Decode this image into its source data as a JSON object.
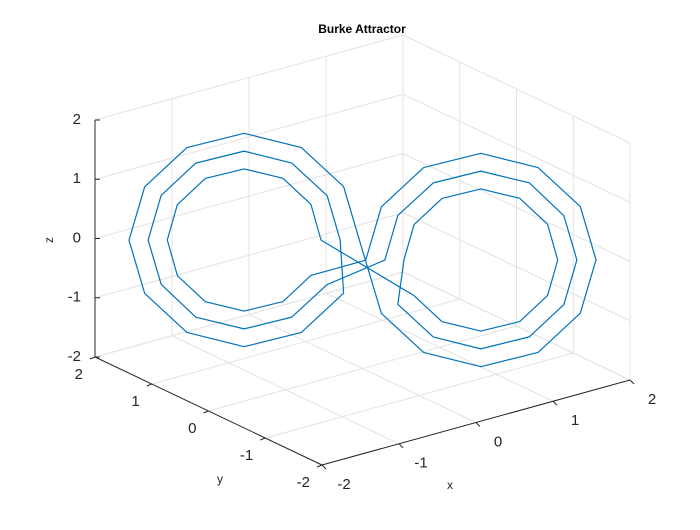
{
  "chart_data": {
    "type": "line3d",
    "title": "Burke Attractor",
    "xlabel": "x",
    "ylabel": "y",
    "zlabel": "z",
    "color": "#0072bd",
    "grid": true,
    "xlim": [
      -2,
      2
    ],
    "ylim": [
      -2,
      2
    ],
    "zlim": [
      -2,
      2
    ],
    "xticks": [
      -2,
      -1,
      0,
      1,
      2
    ],
    "yticks": [
      -2,
      -1,
      0,
      1,
      2
    ],
    "zticks": [
      -2,
      -1,
      0,
      1,
      2
    ],
    "x": [
      0.15,
      0.02,
      -0.33,
      -0.8,
      -1.27,
      -1.62,
      -1.75,
      -1.62,
      -1.27,
      -0.8,
      -0.33,
      0.02,
      -0.01,
      -0.12,
      -0.41,
      -0.8,
      -1.2,
      -1.48,
      -1.59,
      -1.48,
      -1.2,
      -0.8,
      -0.41,
      -0.12,
      0.01,
      0.12,
      0.41,
      0.8,
      1.2,
      1.48,
      1.59,
      1.48,
      1.2,
      0.8,
      0.41,
      0.12,
      0.17,
      0.25,
      0.48,
      0.8,
      1.12,
      1.35,
      1.43,
      1.35,
      1.12,
      0.8,
      0.48,
      0.25,
      -0.17,
      -0.25,
      -0.48,
      -0.8,
      -1.12,
      -1.35,
      -1.43,
      -1.35,
      -1.12,
      -0.8,
      -0.48,
      -0.25,
      -0.15,
      -0.02,
      0.33,
      0.8,
      1.27,
      1.62,
      1.75,
      1.62,
      1.27,
      0.8,
      0.33,
      -0.02,
      0.15
    ],
    "y": [
      0.26,
      0.36,
      0.63,
      1.0,
      1.37,
      1.64,
      1.74,
      1.64,
      1.37,
      1.0,
      0.63,
      0.36,
      0.38,
      0.46,
      0.69,
      1.0,
      1.31,
      1.54,
      1.62,
      1.54,
      1.31,
      1.0,
      0.69,
      0.46,
      -0.38,
      -0.46,
      -0.69,
      -1.0,
      -1.31,
      -1.54,
      -1.62,
      -1.54,
      -1.31,
      -1.0,
      -0.69,
      -0.46,
      -0.5,
      -0.57,
      -0.75,
      -1.0,
      -1.25,
      -1.43,
      -1.5,
      -1.43,
      -1.25,
      -1.0,
      -0.75,
      -0.57,
      0.5,
      0.57,
      0.75,
      1.0,
      1.25,
      1.43,
      1.5,
      1.43,
      1.25,
      1.0,
      0.75,
      0.57,
      -0.26,
      -0.36,
      -0.63,
      -1.0,
      -1.37,
      -1.64,
      -1.74,
      -1.64,
      -1.37,
      -1.0,
      -0.63,
      -0.36,
      0.26
    ],
    "z": [
      0,
      0.9,
      1.56,
      1.8,
      1.56,
      0.9,
      0,
      -0.9,
      -1.56,
      -1.8,
      -1.56,
      -0.9,
      0,
      0.75,
      1.3,
      1.5,
      1.3,
      0.75,
      0,
      -0.75,
      -1.3,
      -1.5,
      -1.3,
      -0.75,
      0,
      0.75,
      1.3,
      1.5,
      1.3,
      0.75,
      0,
      -0.75,
      -1.3,
      -1.5,
      -1.3,
      -0.75,
      0,
      0.6,
      1.04,
      1.2,
      1.04,
      0.6,
      0,
      -0.6,
      -1.04,
      -1.2,
      -1.04,
      -0.6,
      0,
      0.6,
      1.04,
      1.2,
      1.04,
      0.6,
      0,
      -0.6,
      -1.04,
      -1.2,
      -1.04,
      -0.6,
      0,
      0.9,
      1.56,
      1.8,
      1.56,
      0.9,
      0,
      -0.9,
      -1.56,
      -1.8,
      -1.56,
      -0.9,
      0
    ]
  }
}
